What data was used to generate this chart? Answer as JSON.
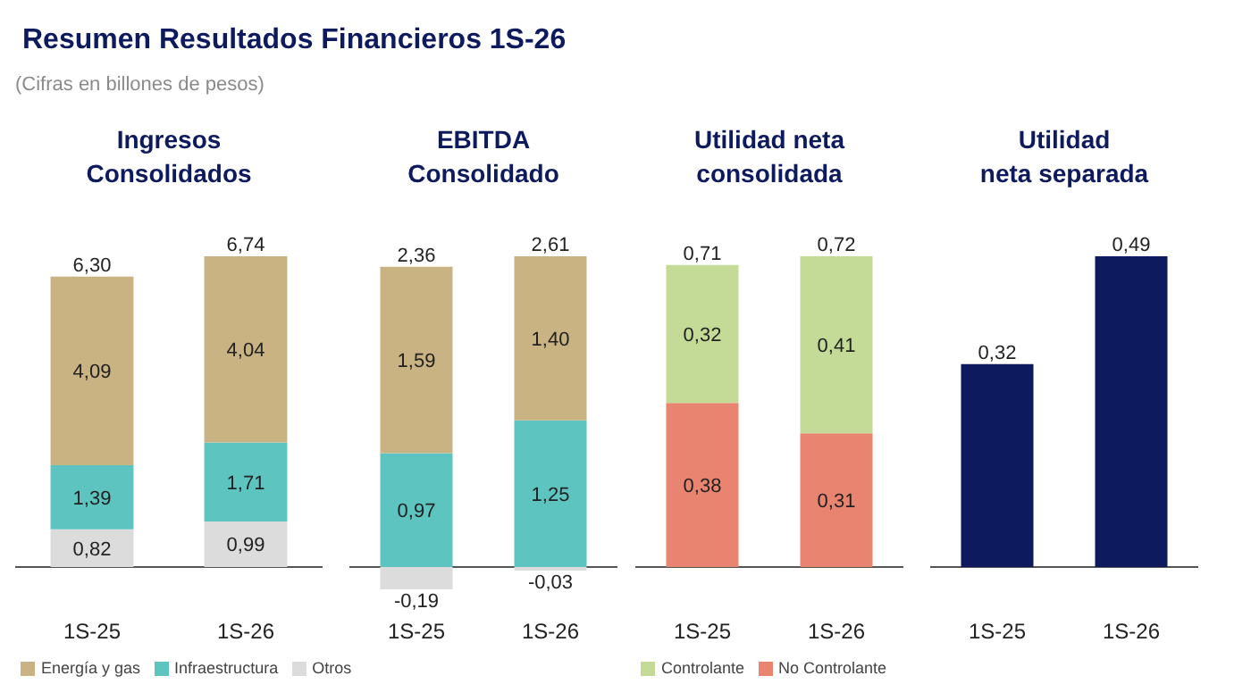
{
  "chart_data": [
    {
      "type": "other",
      "title": "Resumen Resultados Financieros 1S-26",
      "subtitle": "(Cifras en billones de pesos)"
    },
    {
      "type": "bar",
      "title": "Ingresos Consolidados",
      "categories": [
        "1S-25",
        "1S-26"
      ],
      "stacked": true,
      "legend": "bottom",
      "series": [
        {
          "name": "Otros",
          "color": "#dcdcdc",
          "values": [
            0.82,
            0.99
          ],
          "value_labels": [
            "0,82",
            "0,99"
          ]
        },
        {
          "name": "Infraestructura",
          "color": "#5ec4c0",
          "values": [
            1.39,
            1.71
          ],
          "value_labels": [
            "1,39",
            "1,71"
          ]
        },
        {
          "name": "Energía y gas",
          "color": "#c9b383",
          "values": [
            4.09,
            4.04
          ],
          "value_labels": [
            "4,09",
            "4,04"
          ]
        }
      ],
      "totals": [
        "6,30",
        "6,74"
      ]
    },
    {
      "type": "bar",
      "title": "EBITDA Consolidado",
      "categories": [
        "1S-25",
        "1S-26"
      ],
      "stacked": true,
      "series": [
        {
          "color": "#dcdcdc",
          "values": [
            -0.19,
            -0.03
          ],
          "value_labels": [
            "-0,19",
            "-0,03"
          ]
        },
        {
          "color": "#5ec4c0",
          "values": [
            0.97,
            1.25
          ],
          "value_labels": [
            "0,97",
            "1,25"
          ]
        },
        {
          "color": "#c9b383",
          "values": [
            1.59,
            1.4
          ],
          "value_labels": [
            "1,59",
            "1,40"
          ]
        }
      ],
      "totals": [
        "2,36",
        "2,61"
      ]
    },
    {
      "type": "bar",
      "title": "Utilidad neta consolidada",
      "categories": [
        "1S-25",
        "1S-26"
      ],
      "stacked": true,
      "legend": "bottom",
      "series": [
        {
          "name": "No Controlante",
          "color": "#e8846f",
          "values": [
            0.38,
            0.31
          ],
          "value_labels": [
            "0,38",
            "0,31"
          ]
        },
        {
          "name": "Controlante",
          "color": "#c4db97",
          "values": [
            0.32,
            0.41
          ],
          "value_labels": [
            "0,32",
            "0,41"
          ]
        }
      ],
      "totals": [
        "0,71",
        "0,72"
      ]
    },
    {
      "type": "bar",
      "title": "Utilidad neta separada",
      "categories": [
        "1S-25",
        "1S-26"
      ],
      "series": [
        {
          "color": "#0d1b5e",
          "values": [
            0.32,
            0.49
          ],
          "value_labels": [
            "0,32",
            "0,49"
          ]
        }
      ]
    }
  ]
}
